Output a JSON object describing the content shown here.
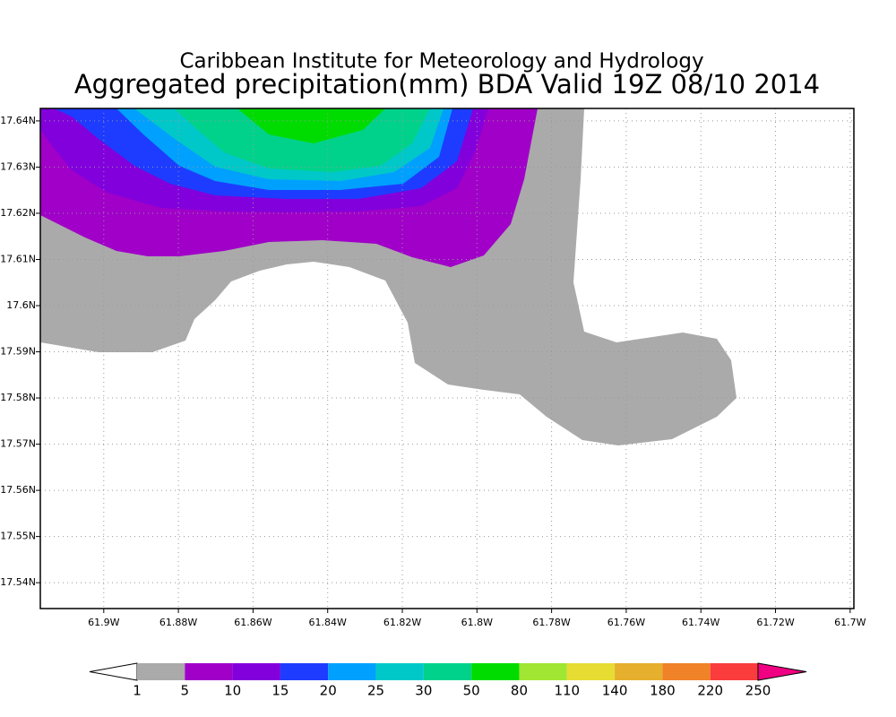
{
  "chart_data": {
    "type": "contour-map",
    "title": "Caribbean Institute for Meteorology and Hydrology",
    "subtitle": "Aggregated precipitation(mm) BDA Valid 19Z 08/10 2014",
    "xlim": [
      -61.917,
      -61.699
    ],
    "ylim": [
      17.5344,
      17.6427
    ],
    "xticks": [
      {
        "value": -61.9,
        "label": "61.9W"
      },
      {
        "value": -61.88,
        "label": "61.88W"
      },
      {
        "value": -61.86,
        "label": "61.86W"
      },
      {
        "value": -61.84,
        "label": "61.84W"
      },
      {
        "value": -61.82,
        "label": "61.82W"
      },
      {
        "value": -61.8,
        "label": "61.8W"
      },
      {
        "value": -61.78,
        "label": "61.78W"
      },
      {
        "value": -61.76,
        "label": "61.76W"
      },
      {
        "value": -61.74,
        "label": "61.74W"
      },
      {
        "value": -61.72,
        "label": "61.72W"
      },
      {
        "value": -61.7,
        "label": "61.7W"
      }
    ],
    "yticks": [
      {
        "value": 17.64,
        "label": "17.64N"
      },
      {
        "value": 17.63,
        "label": "17.63N"
      },
      {
        "value": 17.62,
        "label": "17.62N"
      },
      {
        "value": 17.61,
        "label": "17.61N"
      },
      {
        "value": 17.6,
        "label": "17.6N"
      },
      {
        "value": 17.59,
        "label": "17.59N"
      },
      {
        "value": 17.58,
        "label": "17.58N"
      },
      {
        "value": 17.57,
        "label": "17.57N"
      },
      {
        "value": 17.56,
        "label": "17.56N"
      },
      {
        "value": 17.55,
        "label": "17.55N"
      },
      {
        "value": 17.54,
        "label": "17.54N"
      }
    ],
    "grid": true,
    "levels": [
      1,
      5,
      10,
      15,
      20,
      25,
      30,
      50,
      80,
      110,
      140,
      180,
      220,
      250
    ],
    "colors": [
      "#ffffff",
      "#aaaaaa",
      "#a000c8",
      "#8200dc",
      "#1e3cff",
      "#00a0ff",
      "#00c8c8",
      "#00d28c",
      "#00dc00",
      "#a0e632",
      "#e6dc32",
      "#e6af2d",
      "#f08228",
      "#fa3c3c",
      "#f00082"
    ]
  }
}
